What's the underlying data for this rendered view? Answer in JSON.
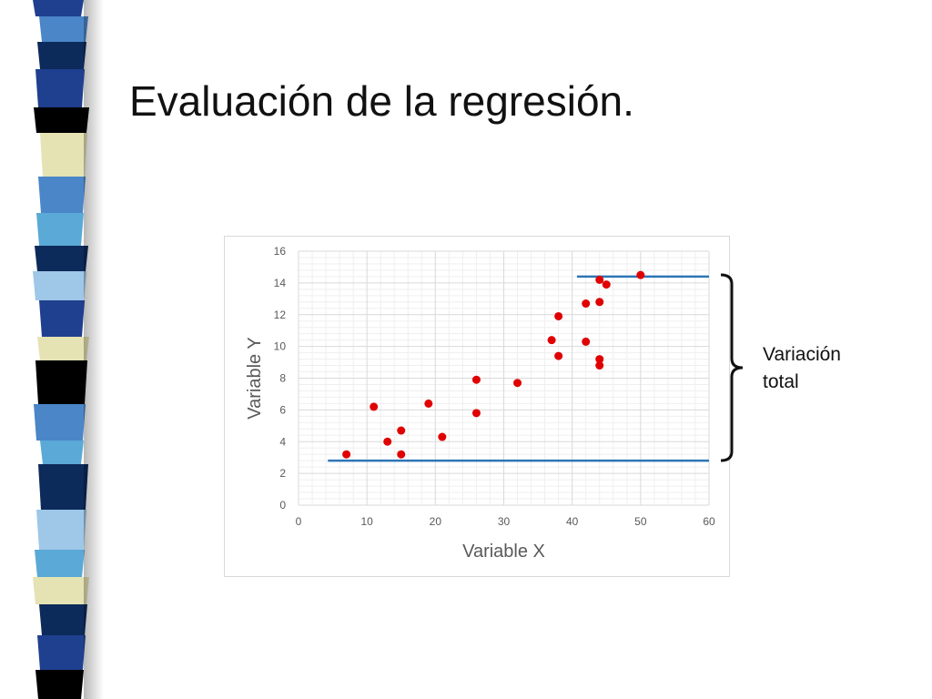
{
  "slide": {
    "title": "Evaluación de la regresión.",
    "annotation": [
      "Variación",
      "total"
    ]
  },
  "decoration": {
    "strip_colors": [
      "#1f3f8f",
      "#4a86c8",
      "#9ec7e8",
      "#0c2a5a",
      "#e5e2b4",
      "#5aa9d6",
      "#000000",
      "#2a6fb8",
      "#d4eaf7",
      "#3d6fae"
    ]
  },
  "chart_data": {
    "type": "scatter",
    "title": "",
    "xlabel": "Variable X",
    "ylabel": "Variable Y",
    "xlim": [
      0,
      60
    ],
    "ylim": [
      0,
      16
    ],
    "x_ticks": [
      0,
      10,
      20,
      30,
      40,
      50,
      60
    ],
    "y_ticks": [
      0,
      2,
      4,
      6,
      8,
      10,
      12,
      14,
      16
    ],
    "grid": true,
    "marker_color": "#e00000",
    "line_color": "#2e75b6",
    "points": [
      {
        "x": 7,
        "y": 3.2
      },
      {
        "x": 11,
        "y": 6.2
      },
      {
        "x": 13,
        "y": 4.0
      },
      {
        "x": 15,
        "y": 4.7
      },
      {
        "x": 15,
        "y": 3.2
      },
      {
        "x": 19,
        "y": 6.4
      },
      {
        "x": 21,
        "y": 4.3
      },
      {
        "x": 26,
        "y": 7.9
      },
      {
        "x": 26,
        "y": 5.8
      },
      {
        "x": 32,
        "y": 7.7
      },
      {
        "x": 37,
        "y": 10.4
      },
      {
        "x": 38,
        "y": 11.9
      },
      {
        "x": 38,
        "y": 9.4
      },
      {
        "x": 42,
        "y": 12.7
      },
      {
        "x": 42,
        "y": 10.3
      },
      {
        "x": 44,
        "y": 14.2
      },
      {
        "x": 44,
        "y": 12.8
      },
      {
        "x": 44,
        "y": 9.2
      },
      {
        "x": 44,
        "y": 8.8
      },
      {
        "x": 45,
        "y": 13.9
      },
      {
        "x": 50,
        "y": 14.5
      }
    ],
    "reference_lines": [
      {
        "name": "min",
        "y": 2.8,
        "x_from": 4.3,
        "x_to": 60
      },
      {
        "name": "max",
        "y": 14.4,
        "x_from": 40.7,
        "x_to": 60
      }
    ]
  }
}
